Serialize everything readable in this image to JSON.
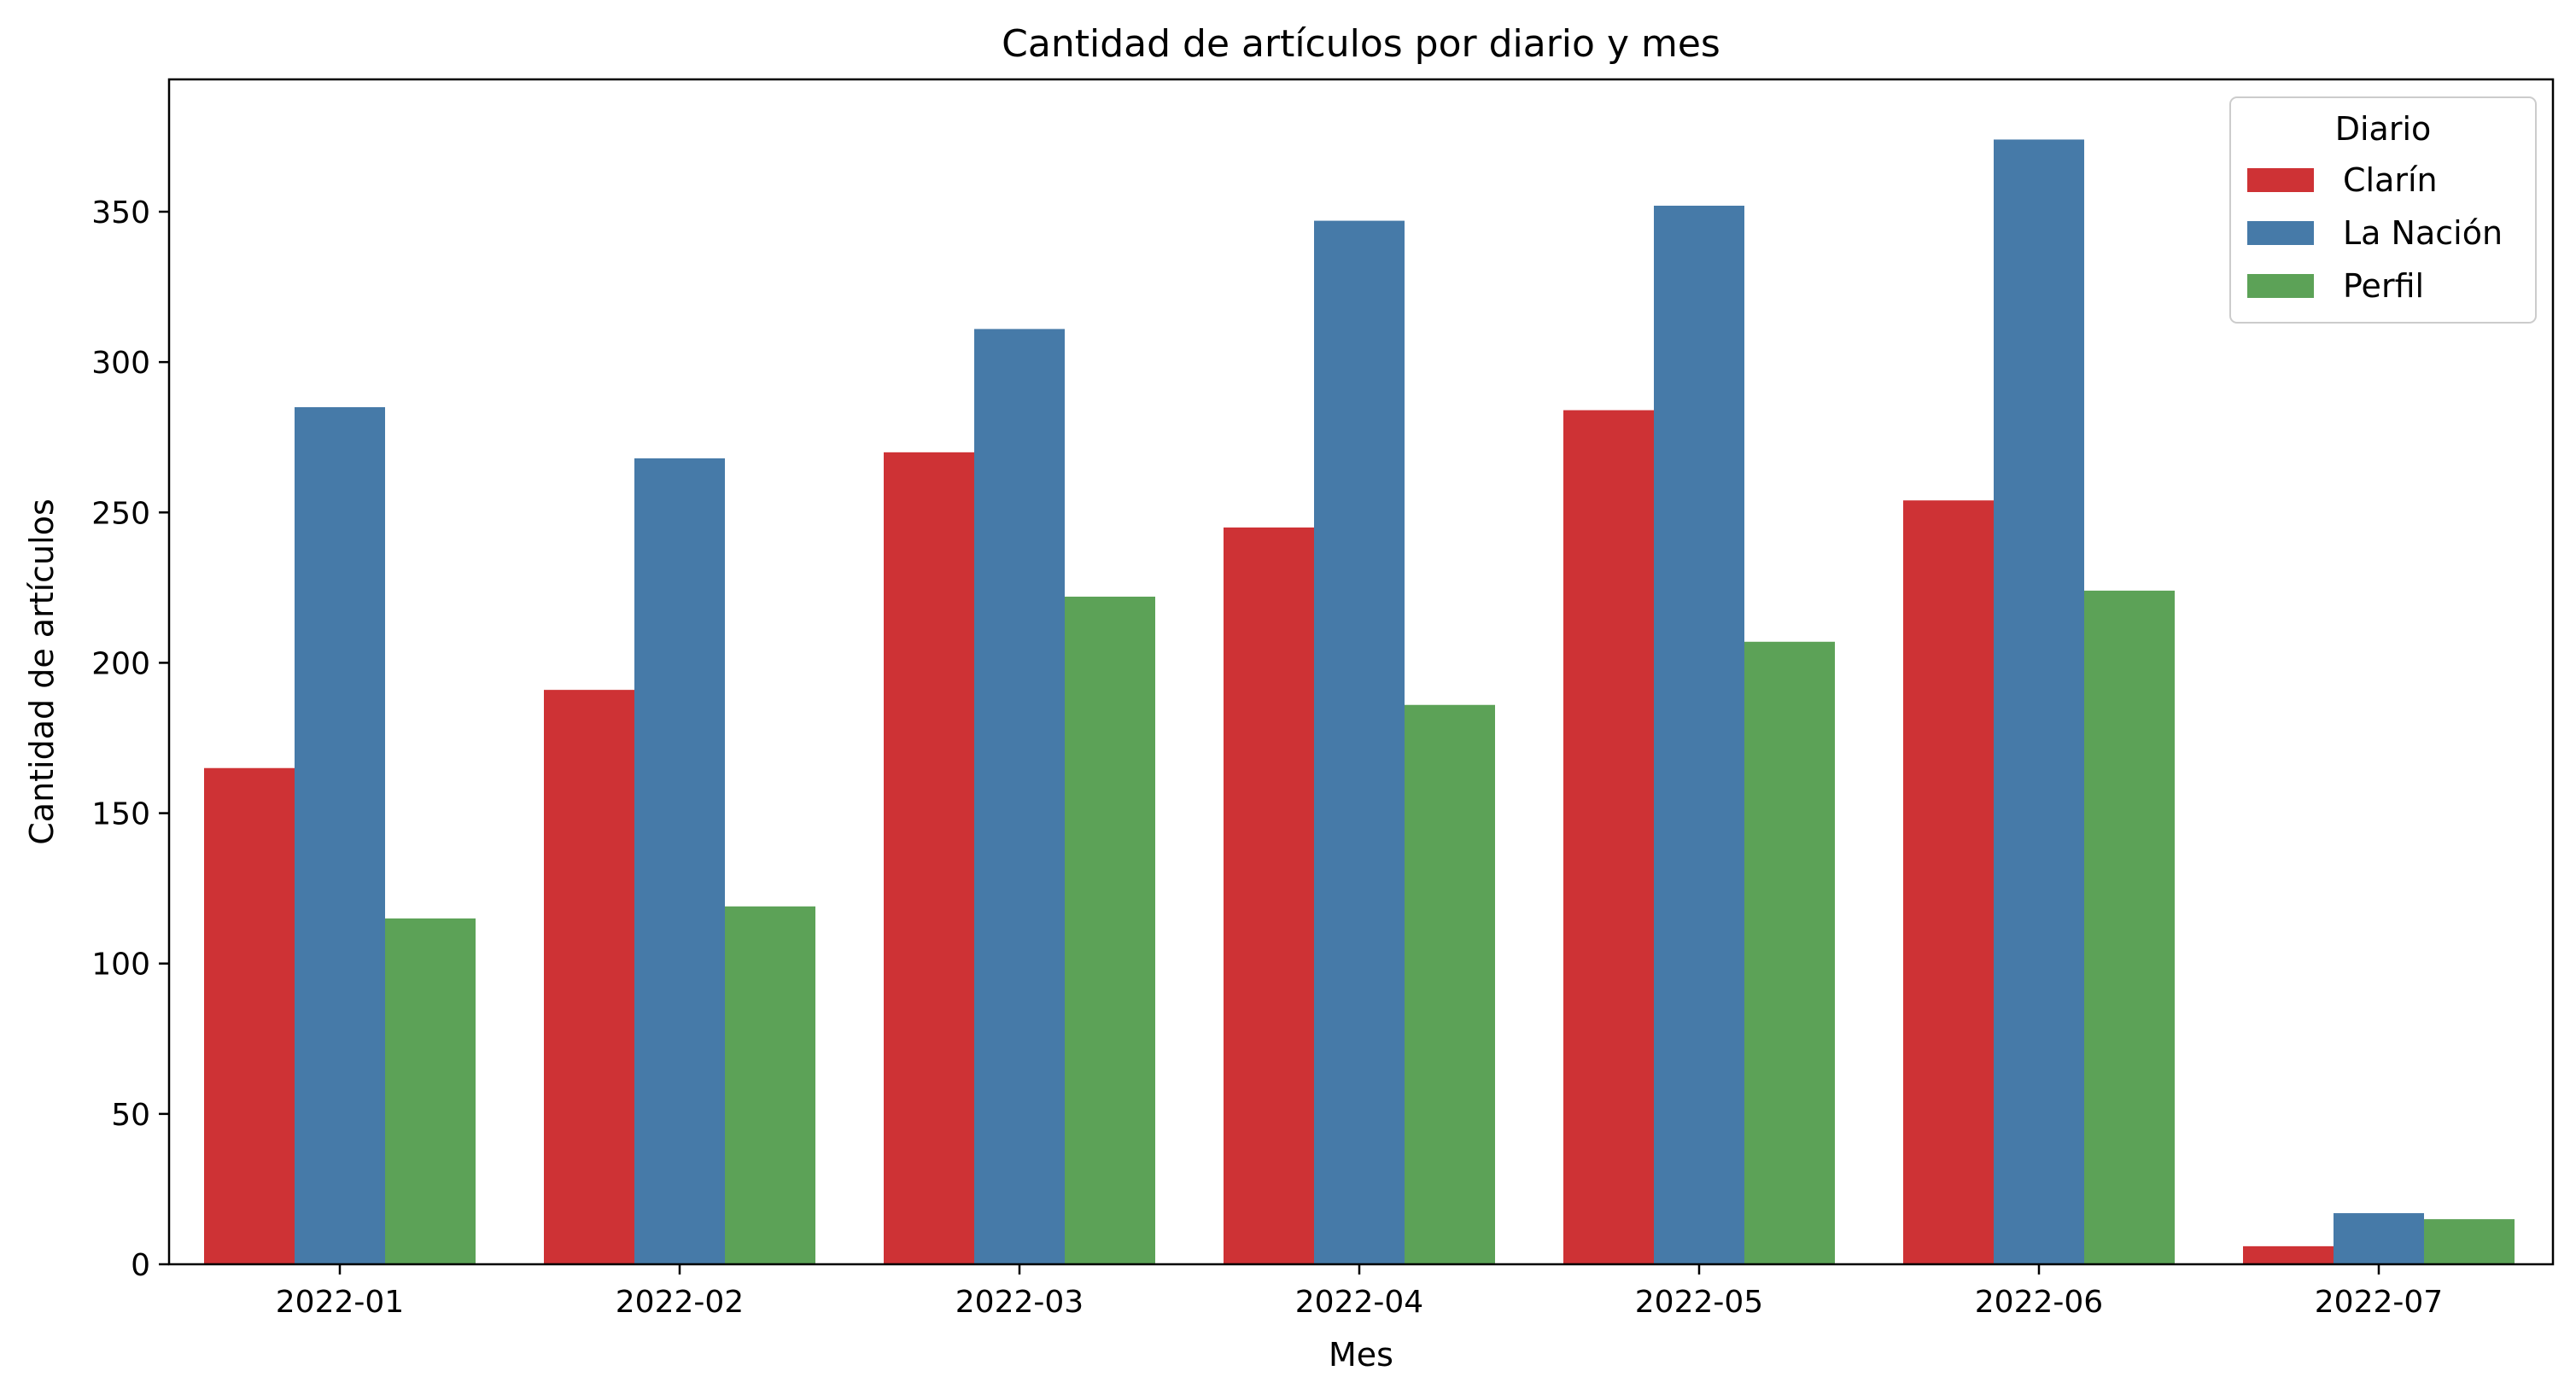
{
  "chart_data": {
    "type": "bar",
    "title": "Cantidad de artículos por diario y mes",
    "xlabel": "Mes",
    "ylabel": "Cantidad de artículos",
    "categories": [
      "2022-01",
      "2022-02",
      "2022-03",
      "2022-04",
      "2022-05",
      "2022-06",
      "2022-07"
    ],
    "series": [
      {
        "name": "Clarín",
        "color": "#ce3235",
        "values": [
          165,
          191,
          270,
          245,
          284,
          254,
          6
        ]
      },
      {
        "name": "La Nación",
        "color": "#467aa8",
        "values": [
          285,
          268,
          311,
          347,
          352,
          374,
          17
        ]
      },
      {
        "name": "Perfil",
        "color": "#5ca257",
        "values": [
          115,
          119,
          222,
          186,
          207,
          224,
          15
        ]
      }
    ],
    "ylim": [
      0,
      394
    ],
    "yticks": [
      0,
      50,
      100,
      150,
      200,
      250,
      300,
      350
    ],
    "grid": false,
    "legend": {
      "title": "Diario",
      "placement": "top-right"
    }
  }
}
